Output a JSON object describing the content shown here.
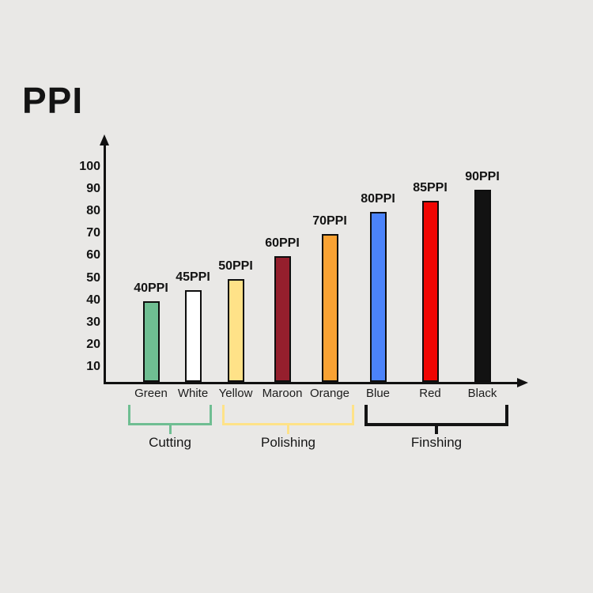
{
  "title": "PPI",
  "page": {
    "background": "#e9e8e6"
  },
  "chart_data": {
    "type": "bar",
    "title": "PPI",
    "categories": [
      "Green",
      "White",
      "Yellow",
      "Maroon",
      "Orange",
      "Blue",
      "Red",
      "Black"
    ],
    "values": [
      40,
      45,
      50,
      60,
      70,
      80,
      85,
      90
    ],
    "bar_labels": [
      "40PPI",
      "45PPI",
      "50PPI",
      "60PPI",
      "70PPI",
      "80PPI",
      "85PPI",
      "90PPI"
    ],
    "bar_colors": [
      "#6fbe92",
      "#ffffff",
      "#ffe288",
      "#951f2d",
      "#f9a233",
      "#4b83fa",
      "#f10603",
      "#121212"
    ],
    "yticks": [
      10,
      20,
      30,
      40,
      50,
      60,
      70,
      80,
      90,
      100
    ],
    "ylim": [
      0,
      107
    ],
    "xlabel": "",
    "ylabel": "",
    "grid": false,
    "legend": false,
    "axis_color": "#111111",
    "groups": [
      {
        "label": "Cutting",
        "start": "Green",
        "end": "White",
        "color": "#6fbe92"
      },
      {
        "label": "Polishing",
        "start": "Yellow",
        "end": "Orange",
        "color": "#ffe288"
      },
      {
        "label": "Finshing",
        "start": "Blue",
        "end": "Black",
        "color": "#141414"
      }
    ]
  }
}
